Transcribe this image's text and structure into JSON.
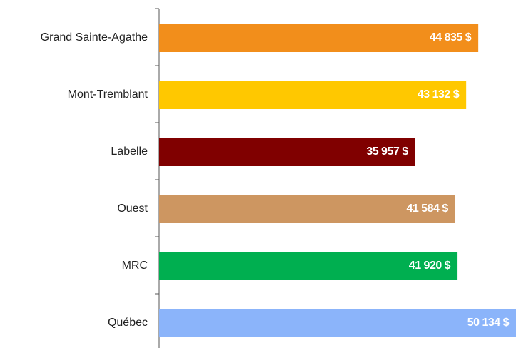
{
  "chart_data": {
    "type": "hbar",
    "categories": [
      "Grand Sainte-Agathe",
      "Mont-Tremblant",
      "Labelle",
      "Ouest",
      "MRC",
      "Québec"
    ],
    "values": [
      44835,
      43132,
      35957,
      41584,
      41920,
      50134
    ],
    "value_labels": [
      "44 835 $",
      "43 132 $",
      "35 957 $",
      "41 584 $",
      "41 920 $",
      "50 134 $"
    ],
    "colors": [
      "#f28e1b",
      "#ffc800",
      "#800000",
      "#cd9661",
      "#00af50",
      "#8bb4fa"
    ]
  }
}
